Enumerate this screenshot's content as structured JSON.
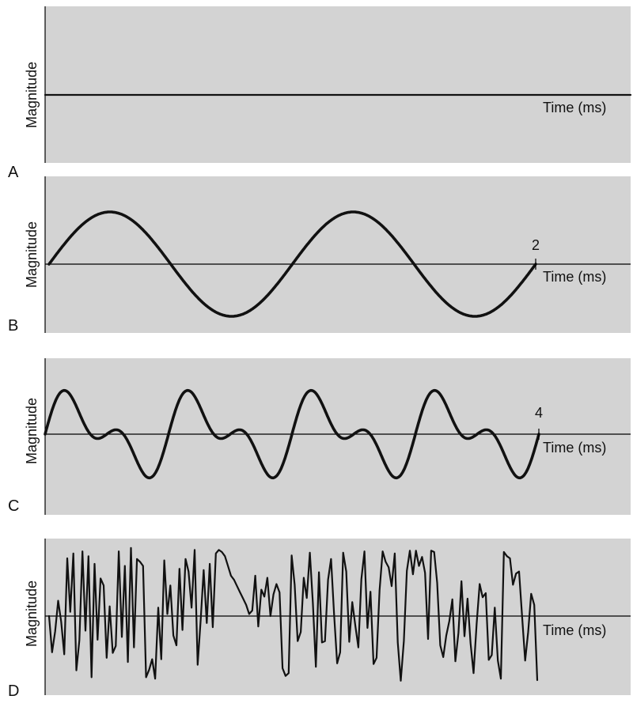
{
  "chart_data": [
    {
      "panel_label": "A",
      "type": "line",
      "ylabel": "Magnitude",
      "xlabel": "Time (ms)",
      "signal": "flat",
      "x_tick_label": "",
      "grid": false
    },
    {
      "panel_label": "B",
      "type": "line",
      "ylabel": "Magnitude",
      "xlabel": "Time (ms)",
      "signal": "sine",
      "cycles": 2,
      "amplitude": 1,
      "x_tick_label": "2",
      "grid": false
    },
    {
      "panel_label": "C",
      "type": "line",
      "ylabel": "Magnitude",
      "xlabel": "Time (ms)",
      "signal": "complex-periodic",
      "cycles": 4,
      "amplitude": 1,
      "x_tick_label": "4",
      "grid": false
    },
    {
      "panel_label": "D",
      "type": "line",
      "ylabel": "Magnitude",
      "xlabel": "Time (ms)",
      "signal": "noise",
      "x_tick_label": "",
      "grid": false,
      "values": [
        0.0,
        -0.52,
        -0.22,
        0.22,
        -0.08,
        -0.55,
        0.83,
        0.06,
        0.9,
        -0.78,
        -0.35,
        0.93,
        -0.21,
        0.86,
        -0.88,
        0.75,
        -0.34,
        0.54,
        0.44,
        -0.6,
        0.14,
        -0.53,
        -0.43,
        0.93,
        -0.3,
        0.72,
        -0.66,
        0.98,
        -0.45,
        0.82,
        0.78,
        0.72,
        -0.88,
        -0.77,
        -0.62,
        -0.9,
        0.12,
        -0.62,
        0.8,
        0.03,
        0.44,
        -0.28,
        -0.42,
        0.68,
        -0.2,
        0.82,
        0.64,
        0.12,
        0.95,
        -0.7,
        -0.06,
        0.66,
        -0.1,
        0.75,
        -0.16,
        0.9,
        0.95,
        0.92,
        0.86,
        0.72,
        0.58,
        0.52,
        0.43,
        0.34,
        0.25,
        0.16,
        0.03,
        0.08,
        0.58,
        -0.15,
        0.38,
        0.28,
        0.55,
        0.0,
        0.31,
        0.46,
        0.34,
        -0.75,
        -0.86,
        -0.82,
        0.87,
        0.45,
        -0.36,
        -0.23,
        0.55,
        0.26,
        0.91,
        0.19,
        -0.73,
        0.63,
        -0.38,
        -0.36,
        0.52,
        0.82,
        0.03,
        -0.68,
        -0.52,
        0.91,
        0.64,
        -0.37,
        0.2,
        -0.14,
        -0.45,
        0.53,
        0.93,
        -0.17,
        0.35,
        -0.69,
        -0.6,
        0.37,
        0.93,
        0.78,
        0.7,
        0.43,
        0.9,
        -0.38,
        -0.93,
        -0.36,
        0.65,
        0.94,
        0.6,
        0.94,
        0.72,
        0.85,
        0.62,
        -0.33,
        0.94,
        0.92,
        0.48,
        -0.42,
        -0.59,
        -0.28,
        -0.07,
        0.24,
        -0.65,
        -0.24,
        0.5,
        -0.29,
        0.25,
        -0.39,
        -0.82,
        -0.11,
        0.46,
        0.27,
        0.33,
        -0.63,
        -0.56,
        0.12,
        -0.64,
        -0.9,
        0.92,
        0.86,
        0.83,
        0.45,
        0.61,
        0.64,
        0.0,
        -0.64,
        -0.23,
        0.32,
        0.16,
        -0.92
      ]
    }
  ]
}
